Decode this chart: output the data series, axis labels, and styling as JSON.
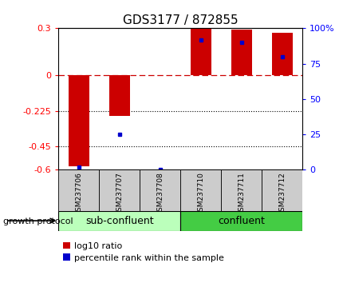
{
  "title": "GDS3177 / 872855",
  "samples": [
    "GSM237706",
    "GSM237707",
    "GSM237708",
    "GSM237710",
    "GSM237711",
    "GSM237712"
  ],
  "log10_ratio": [
    -0.58,
    -0.255,
    0.0,
    0.3,
    0.29,
    0.27
  ],
  "percentile_rank": [
    2,
    25,
    0,
    92,
    90,
    80
  ],
  "ylim_left": [
    -0.6,
    0.3
  ],
  "ylim_right": [
    0,
    100
  ],
  "yticks_left": [
    -0.6,
    -0.45,
    -0.225,
    0,
    0.3
  ],
  "ytick_labels_left": [
    "-0.6",
    "-0.45",
    "-0.225",
    "0",
    "0.3"
  ],
  "yticks_right": [
    0,
    25,
    50,
    75,
    100
  ],
  "ytick_labels_right": [
    "0",
    "25",
    "50",
    "75",
    "100%"
  ],
  "hlines_dotted": [
    -0.225,
    -0.45
  ],
  "hline_dash": 0.0,
  "bar_color_red": "#cc0000",
  "bar_color_blue": "#0000cc",
  "group1_label": "sub-confluent",
  "group2_label": "confluent",
  "group1_color": "#bbffbb",
  "group2_color": "#44cc44",
  "growth_protocol_label": "growth protocol",
  "legend_red_label": "log10 ratio",
  "legend_blue_label": "percentile rank within the sample",
  "bar_width": 0.5,
  "tick_label_bg": "#cccccc",
  "title_fontsize": 11,
  "axis_fontsize": 8,
  "legend_fontsize": 8,
  "group_fontsize": 9
}
